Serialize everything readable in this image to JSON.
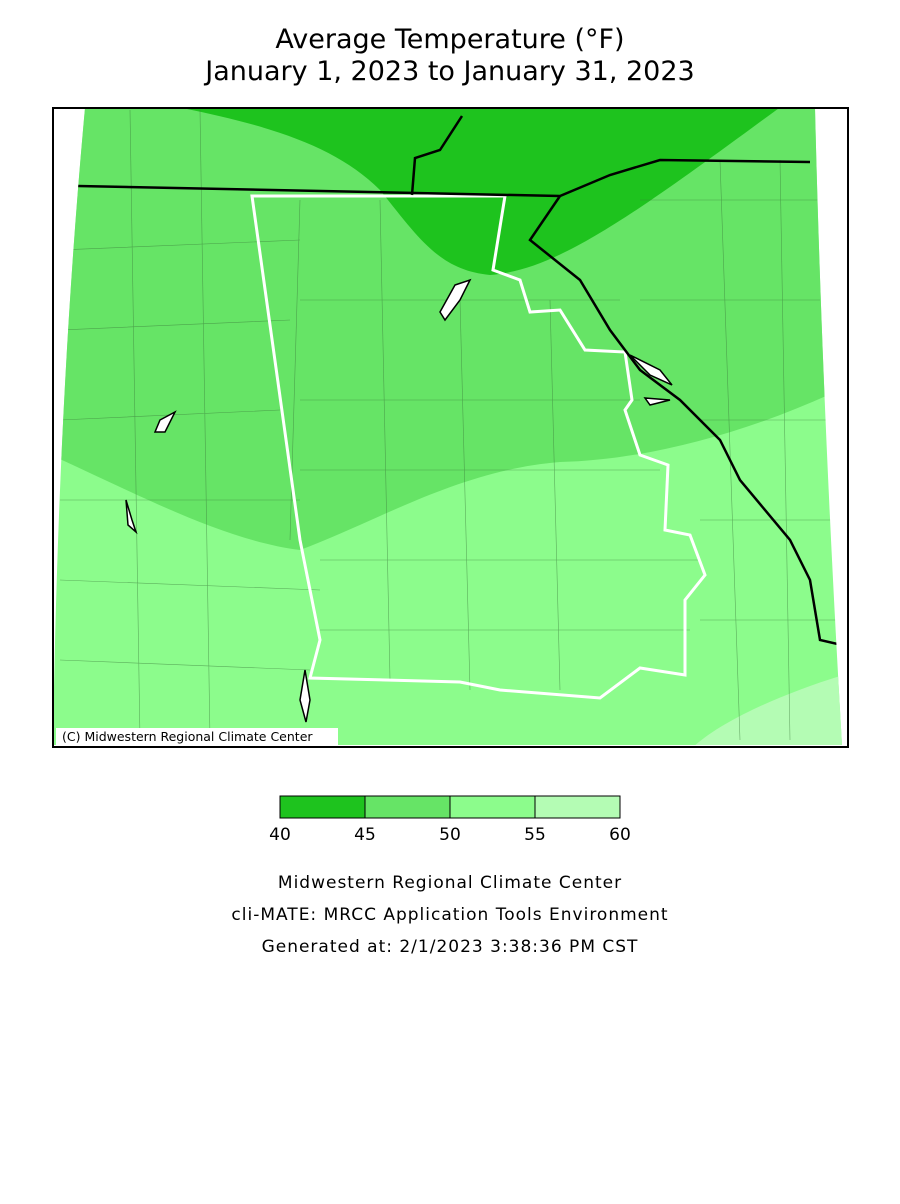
{
  "title": "Average Temperature (°F)",
  "subtitle": "January 1, 2023 to January 31, 2023",
  "map": {
    "credit": "(C) Midwestern Regional Climate Center"
  },
  "legend": {
    "ticks": [
      40,
      45,
      50,
      55,
      60
    ],
    "colors": [
      "#1ec31e",
      "#66e466",
      "#8cfc8c",
      "#b4fcb4"
    ]
  },
  "footer": {
    "lines": [
      "Midwestern Regional Climate Center",
      "cli-MATE: MRCC Application Tools Environment",
      "Generated at: 2/1/2023 3:38:36 PM CST"
    ]
  }
}
